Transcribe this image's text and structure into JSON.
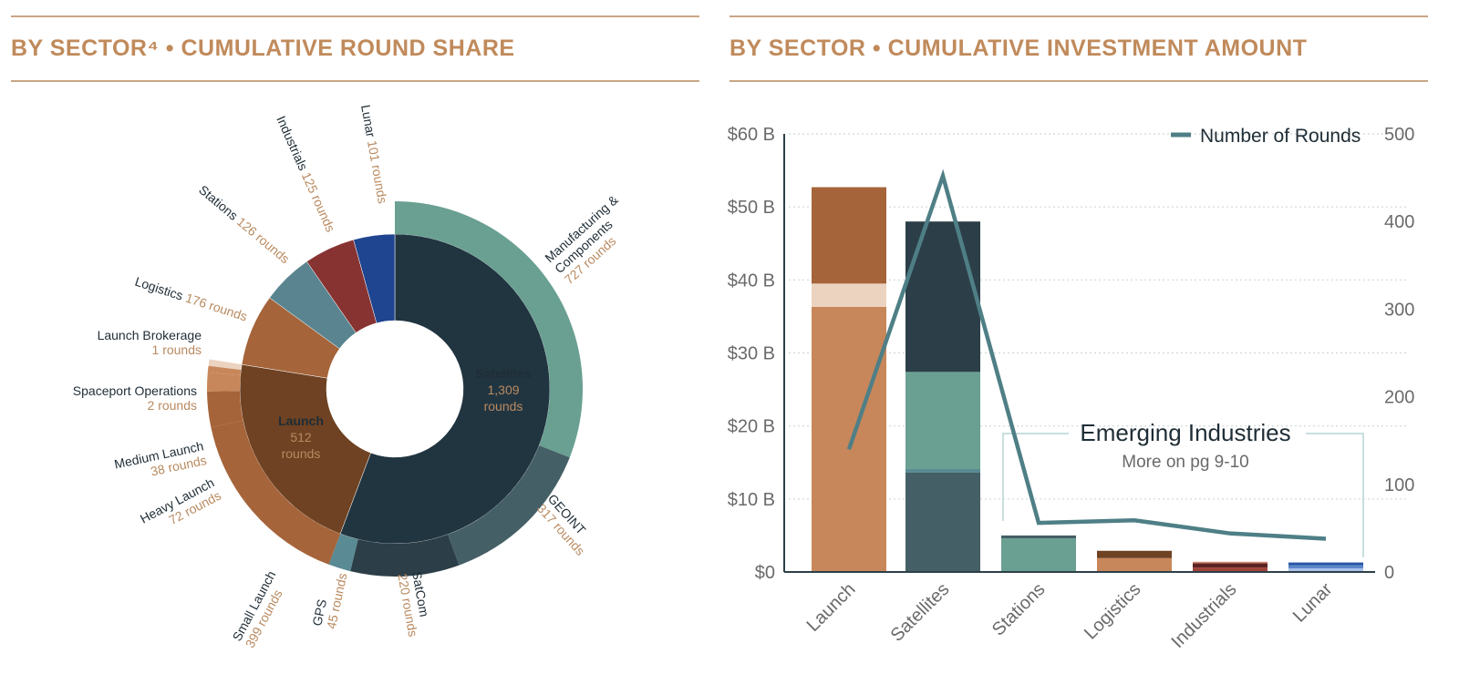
{
  "left_header": {
    "title": "BY SECTOR⁴  •  CUMULATIVE ROUND SHARE"
  },
  "right_header": {
    "title": "BY SECTOR  •  CUMULATIVE INVESTMENT AMOUNT"
  },
  "chart_data": [
    {
      "type": "sunburst",
      "title": "BY SECTOR⁴ • CUMULATIVE ROUND SHARE",
      "unit": "rounds",
      "inner": [
        {
          "name": "Satellites",
          "value": 1309,
          "value_label": "1,309",
          "unit_label": "rounds",
          "color": "#213541",
          "children": [
            {
              "name": "Manufacturing & Components",
              "value": 727,
              "value_label": "727 rounds",
              "color": "#69a091"
            },
            {
              "name": "GEOINT",
              "value": 317,
              "value_label": "317 rounds",
              "color": "#455f66"
            },
            {
              "name": "SatCom",
              "value": 220,
              "value_label": "220 rounds",
              "color": "#2c3f48"
            },
            {
              "name": "GPS",
              "value": 45,
              "value_label": "45 rounds",
              "color": "#5a8a94"
            }
          ]
        },
        {
          "name": "Launch",
          "value": 512,
          "value_label": "512",
          "unit_label": "rounds",
          "color": "#6e4222",
          "children": [
            {
              "name": "Small Launch",
              "value": 399,
              "value_label": "399 rounds",
              "color": "#a5643a"
            },
            {
              "name": "Heavy Launch",
              "value": 72,
              "value_label": "72 rounds",
              "color": "#a5643a"
            },
            {
              "name": "Medium Launch",
              "value": 38,
              "value_label": "38 rounds",
              "color": "#c8875a"
            },
            {
              "name": "Spaceport Operations",
              "value": 2,
              "value_label": "2 rounds",
              "color": "#c8875a"
            },
            {
              "name": "Launch Brokerage",
              "value": 1,
              "value_label": "1 rounds",
              "color": "#ecd3c0"
            }
          ]
        },
        {
          "name": "Logistics",
          "value": 176,
          "value_label": "176 rounds",
          "color": "#a5643a"
        },
        {
          "name": "Stations",
          "value": 126,
          "value_label": "126 rounds",
          "color": "#5a8590"
        },
        {
          "name": "Industrials",
          "value": 125,
          "value_label": "125 rounds",
          "color": "#873332"
        },
        {
          "name": "Lunar",
          "value": 101,
          "value_label": "101 rounds",
          "color": "#1f4590"
        }
      ]
    },
    {
      "type": "bar+line",
      "title": "BY SECTOR • CUMULATIVE INVESTMENT AMOUNT",
      "categories": [
        "Launch",
        "Satellites",
        "Stations",
        "Logistics",
        "Industrials",
        "Lunar"
      ],
      "stacks": [
        [
          {
            "value": 36.3,
            "color": "#c8875a"
          },
          {
            "value": 3.2,
            "color": "#ecd3c0"
          },
          {
            "value": 13.2,
            "color": "#a5643a"
          }
        ],
        [
          {
            "value": 13.6,
            "color": "#455f66"
          },
          {
            "value": 0.5,
            "color": "#5a8a94"
          },
          {
            "value": 13.3,
            "color": "#69a091"
          },
          {
            "value": 20.6,
            "color": "#2c3f48"
          }
        ],
        [
          {
            "value": 4.6,
            "color": "#69a091"
          },
          {
            "value": 0.4,
            "color": "#455f66"
          }
        ],
        [
          {
            "value": 1.9,
            "color": "#c8875a"
          },
          {
            "value": 1.0,
            "color": "#6e4222"
          }
        ],
        [
          {
            "value": 0.6,
            "color": "#a04238"
          },
          {
            "value": 0.6,
            "color": "#5e2320"
          },
          {
            "value": 0.2,
            "color": "#d08a70"
          }
        ],
        [
          {
            "value": 0.5,
            "color": "#a9c2e8"
          },
          {
            "value": 0.4,
            "color": "#5c86c9"
          },
          {
            "value": 0.4,
            "color": "#2a55a6"
          }
        ]
      ],
      "line": {
        "name": "Number of Rounds",
        "color": "#4f7f86",
        "values": [
          140,
          452,
          56,
          59,
          44,
          38
        ]
      },
      "y_left": {
        "ticks": [
          "$0",
          "$10 B",
          "$20 B",
          "$30 B",
          "$40 B",
          "$50 B",
          "$60 B"
        ],
        "range": [
          0,
          60
        ],
        "unit": "USD billions"
      },
      "y_right": {
        "ticks": [
          "0",
          "100",
          "200",
          "300",
          "400",
          "500"
        ],
        "range": [
          0,
          500
        ]
      },
      "grid": "horizontal dotted",
      "legend": "top-right",
      "annotation": {
        "title": "Emerging Industries",
        "subtitle": "More on pg 9-10",
        "spans": [
          "Stations",
          "Logistics",
          "Industrials",
          "Lunar"
        ]
      }
    }
  ]
}
